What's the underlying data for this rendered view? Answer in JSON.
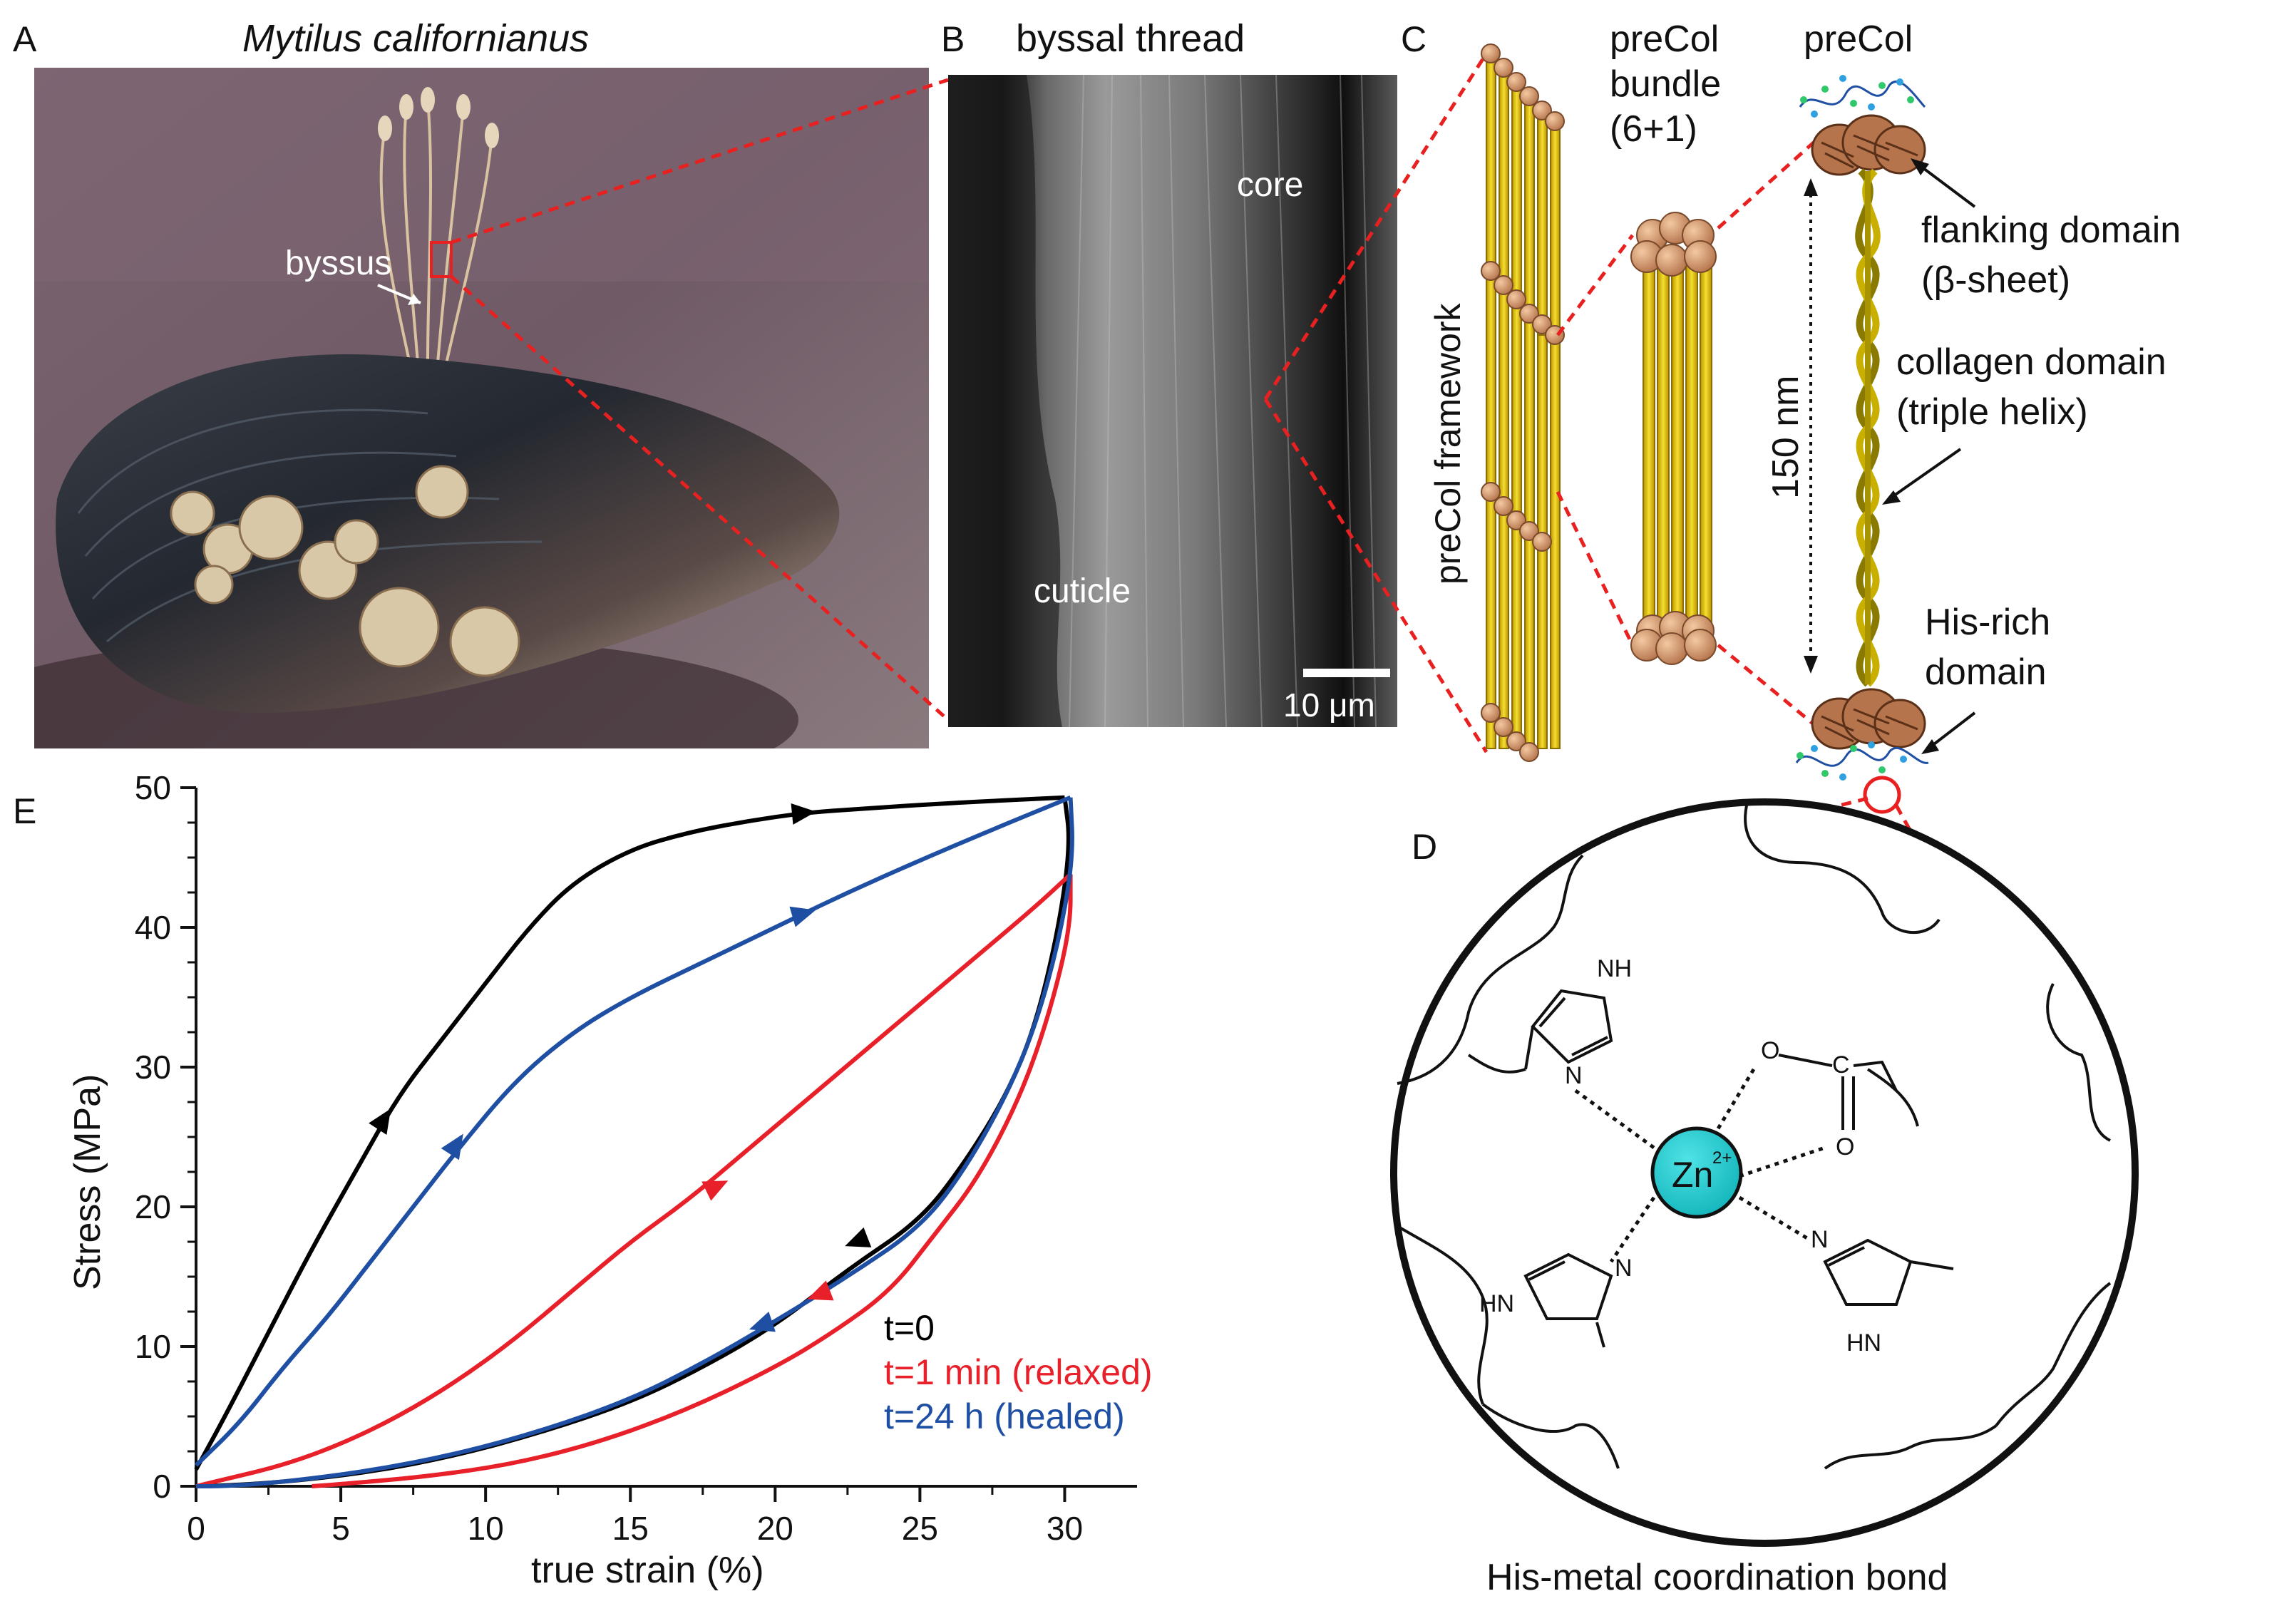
{
  "panels": {
    "A": {
      "letter": "A",
      "title": "Mytilus californianus",
      "label_byssus": "byssus"
    },
    "B": {
      "letter": "B",
      "title": "byssal thread",
      "label_core": "core",
      "label_cuticle": "cuticle",
      "scale_bar": "10 μm"
    },
    "C": {
      "letter": "C",
      "framework_label": "preCol framework",
      "bundle_line1": "preCol",
      "bundle_line2": "bundle",
      "bundle_line3": "(6+1)",
      "precol_label": "preCol",
      "flanking_line1": "flanking domain",
      "flanking_line2": "(β-sheet)",
      "collagen_line1": "collagen domain",
      "collagen_line2": "(triple helix)",
      "length_label": "150 nm",
      "his_line1": "His-rich",
      "his_line2": "domain"
    },
    "D": {
      "letter": "D",
      "caption": "His-metal coordination bond",
      "metal": "Zn",
      "charge": "2+",
      "atom_nh": "NH",
      "atom_n": "N",
      "atom_hn": "HN",
      "atom_o": "O",
      "atom_c": "C"
    }
  },
  "chart_data": {
    "letter": "E",
    "type": "line",
    "xlabel": "true strain (%)",
    "ylabel": "Stress (MPa)",
    "xlim": [
      0,
      32.5
    ],
    "ylim": [
      0,
      50
    ],
    "x_ticks": [
      0,
      5,
      10,
      15,
      20,
      25,
      30
    ],
    "y_ticks": [
      0,
      10,
      20,
      30,
      40,
      50
    ],
    "grid": false,
    "legend_position": "lower-right",
    "series": [
      {
        "name": "t=0",
        "color": "#000000",
        "loading": [
          [
            0,
            1.2
          ],
          [
            1,
            5
          ],
          [
            2.5,
            11
          ],
          [
            4,
            17
          ],
          [
            5.5,
            22.5
          ],
          [
            7,
            28
          ],
          [
            8.5,
            32
          ],
          [
            10,
            36
          ],
          [
            11.5,
            40
          ],
          [
            13,
            43.2
          ],
          [
            15,
            45.6
          ],
          [
            17,
            46.8
          ],
          [
            19,
            47.6
          ],
          [
            21,
            48.2
          ],
          [
            23,
            48.5
          ],
          [
            26,
            48.9
          ],
          [
            30,
            49.3
          ]
        ],
        "unloading": [
          [
            30,
            49.3
          ],
          [
            30.2,
            46
          ],
          [
            29.8,
            40
          ],
          [
            29,
            33
          ],
          [
            28,
            28
          ],
          [
            26.5,
            23
          ],
          [
            25,
            19
          ],
          [
            22.5,
            15.5
          ],
          [
            20,
            11.5
          ],
          [
            17.5,
            8.5
          ],
          [
            15,
            6
          ],
          [
            12,
            3.9
          ],
          [
            9,
            2.2
          ],
          [
            6,
            1
          ],
          [
            3,
            0.3
          ],
          [
            1,
            0.05
          ],
          [
            0,
            0
          ]
        ]
      },
      {
        "name": "t=1 min (relaxed)",
        "color": "#e8202a",
        "loading": [
          [
            0,
            0
          ],
          [
            1,
            0.5
          ],
          [
            3,
            1.5
          ],
          [
            5,
            3
          ],
          [
            7,
            5
          ],
          [
            9,
            7.5
          ],
          [
            11,
            10.5
          ],
          [
            13,
            14
          ],
          [
            15,
            17.5
          ],
          [
            17,
            20.5
          ],
          [
            19,
            24
          ],
          [
            21,
            27.5
          ],
          [
            23,
            31
          ],
          [
            25,
            34.5
          ],
          [
            27,
            38
          ],
          [
            29,
            41.5
          ],
          [
            30.2,
            43.8
          ]
        ],
        "unloading": [
          [
            30.2,
            43.8
          ],
          [
            30.2,
            40
          ],
          [
            29.5,
            34
          ],
          [
            28.5,
            28
          ],
          [
            27,
            22
          ],
          [
            25.5,
            18
          ],
          [
            24,
            14
          ],
          [
            22,
            11
          ],
          [
            20,
            8.5
          ],
          [
            17,
            5.5
          ],
          [
            14,
            3.2
          ],
          [
            11,
            1.6
          ],
          [
            8,
            0.7
          ],
          [
            5,
            0.15
          ],
          [
            4,
            0
          ]
        ]
      },
      {
        "name": "t=24 h (healed)",
        "color": "#1f4fa3",
        "loading": [
          [
            0,
            1.5
          ],
          [
            1.5,
            4.5
          ],
          [
            3,
            8.5
          ],
          [
            4.5,
            12
          ],
          [
            6,
            16
          ],
          [
            7.5,
            20
          ],
          [
            9,
            24
          ],
          [
            11,
            29
          ],
          [
            13,
            32.5
          ],
          [
            15,
            35
          ],
          [
            17.5,
            37.5
          ],
          [
            20,
            40
          ],
          [
            22.5,
            42.5
          ],
          [
            25,
            44.8
          ],
          [
            27.5,
            47
          ],
          [
            30.2,
            49.3
          ]
        ],
        "unloading": [
          [
            30.2,
            49.3
          ],
          [
            30.3,
            45
          ],
          [
            29.8,
            39
          ],
          [
            29,
            33
          ],
          [
            28,
            28
          ],
          [
            26.5,
            22.5
          ],
          [
            25,
            18.5
          ],
          [
            22.5,
            15
          ],
          [
            20,
            11.8
          ],
          [
            17.5,
            8.8
          ],
          [
            15,
            6.2
          ],
          [
            12,
            4
          ],
          [
            9,
            2.3
          ],
          [
            6,
            1.1
          ],
          [
            3,
            0.3
          ],
          [
            1,
            0
          ],
          [
            0,
            0
          ]
        ]
      }
    ],
    "arrows": [
      {
        "series": 0,
        "x": 21,
        "y": 48.2,
        "dx": 1,
        "dy": 0.2
      },
      {
        "series": 0,
        "x": 6.5,
        "y": 26.3,
        "dx": 0.5,
        "dy": 1.6
      },
      {
        "series": 0,
        "x": 22.8,
        "y": 17.5,
        "dx": -1,
        "dy": -0.8
      },
      {
        "series": 2,
        "x": 21,
        "y": 41,
        "dx": 1,
        "dy": 0.6
      },
      {
        "series": 2,
        "x": 9,
        "y": 24.5,
        "dx": 0.5,
        "dy": 1.6
      },
      {
        "series": 2,
        "x": 19.5,
        "y": 11.5,
        "dx": -1,
        "dy": -0.7
      },
      {
        "series": 1,
        "x": 18,
        "y": 21.5,
        "dx": 1,
        "dy": 1
      },
      {
        "series": 1,
        "x": 21.5,
        "y": 13.7,
        "dx": -1,
        "dy": -0.8
      }
    ]
  }
}
